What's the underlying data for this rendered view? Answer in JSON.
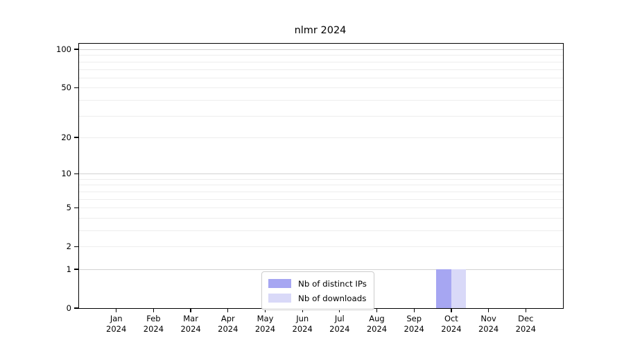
{
  "chart_data": {
    "type": "bar",
    "title": "nlmr 2024",
    "months": [
      "Jan",
      "Feb",
      "Mar",
      "Apr",
      "May",
      "Jun",
      "Jul",
      "Aug",
      "Sep",
      "Oct",
      "Nov",
      "Dec"
    ],
    "year": "2024",
    "series": [
      {
        "name": "Nb of distinct IPs",
        "color": "#a6a6f2",
        "values": [
          0,
          0,
          0,
          0,
          0,
          0,
          0,
          0,
          0,
          1,
          0,
          0
        ]
      },
      {
        "name": "Nb of downloads",
        "color": "#d9d9f8",
        "values": [
          0,
          0,
          0,
          0,
          0,
          0,
          0,
          0,
          0,
          1,
          0,
          0
        ]
      }
    ],
    "yscale": "log1p",
    "yticks": [
      0,
      1,
      2,
      5,
      10,
      20,
      50,
      100
    ],
    "ylim": [
      0,
      110
    ],
    "gridlines": {
      "values": [
        1,
        2,
        3,
        4,
        5,
        6,
        7,
        8,
        9,
        10,
        20,
        30,
        40,
        50,
        60,
        70,
        80,
        90,
        100
      ],
      "major": [
        1,
        10,
        100
      ]
    },
    "legend_position": "lower center",
    "grid": "on",
    "xlabel": "",
    "ylabel": ""
  },
  "colors": {
    "background": "#ffffff",
    "axis": "#000000",
    "grid_minor": "#ededed",
    "grid_major": "#d2d2d2",
    "legend_border": "#cccccc"
  }
}
